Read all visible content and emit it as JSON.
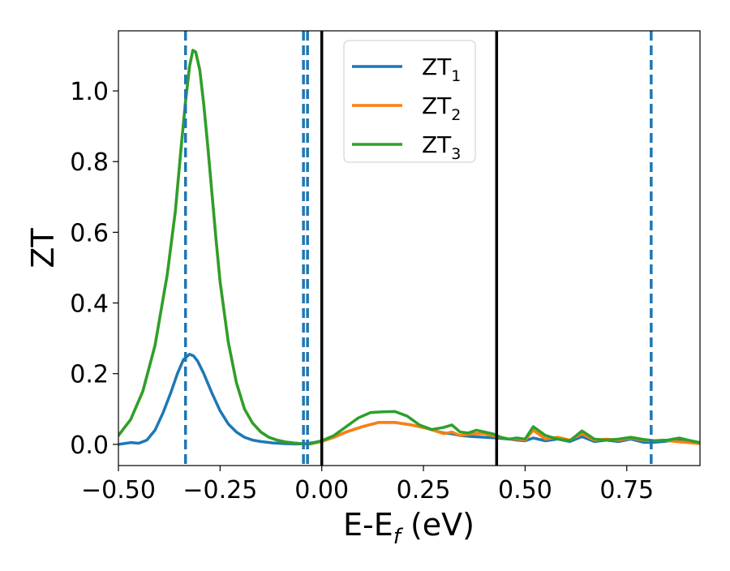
{
  "chart_data": {
    "type": "line",
    "xlabel": "E-E",
    "xlabel_sub": "f",
    "xlabel_unit": " (eV)",
    "ylabel": "ZT",
    "xlim": [
      -0.5,
      0.93
    ],
    "ylim": [
      -0.06,
      1.17
    ],
    "xticks": [
      -0.5,
      -0.25,
      0.0,
      0.25,
      0.5,
      0.75
    ],
    "xtick_labels": [
      "−0.50",
      "−0.25",
      "0.00",
      "0.25",
      "0.50",
      "0.75"
    ],
    "yticks": [
      0.0,
      0.2,
      0.4,
      0.6,
      0.8,
      1.0
    ],
    "ytick_labels": [
      "0.0",
      "0.2",
      "0.4",
      "0.6",
      "0.8",
      "1.0"
    ],
    "grid": false,
    "legend_position": "top-center",
    "vlines_solid": [
      0.0,
      0.43
    ],
    "vlines_dashed": [
      -0.335,
      -0.045,
      -0.035,
      0.81
    ],
    "vline_solid_color": "#000000",
    "vline_dashed_color": "#1f77b4",
    "series": [
      {
        "name": "ZT",
        "name_sub": "1",
        "color": "#1f77b4",
        "x": [
          -0.5,
          -0.47,
          -0.45,
          -0.43,
          -0.41,
          -0.39,
          -0.37,
          -0.355,
          -0.34,
          -0.325,
          -0.315,
          -0.305,
          -0.29,
          -0.27,
          -0.25,
          -0.23,
          -0.21,
          -0.19,
          -0.17,
          -0.15,
          -0.12,
          -0.09,
          -0.06,
          -0.04,
          -0.02,
          0.0,
          0.03,
          0.06,
          0.1,
          0.14,
          0.18,
          0.22,
          0.26,
          0.28,
          0.3,
          0.32,
          0.34,
          0.37,
          0.4,
          0.43,
          0.46,
          0.48,
          0.5,
          0.52,
          0.55,
          0.58,
          0.61,
          0.64,
          0.67,
          0.7,
          0.73,
          0.76,
          0.79,
          0.81,
          0.84,
          0.87,
          0.9,
          0.93
        ],
        "y": [
          0.0,
          0.005,
          0.003,
          0.012,
          0.04,
          0.09,
          0.15,
          0.2,
          0.24,
          0.255,
          0.25,
          0.235,
          0.2,
          0.145,
          0.095,
          0.058,
          0.035,
          0.02,
          0.012,
          0.008,
          0.004,
          0.002,
          0.001,
          0.002,
          0.005,
          0.01,
          0.02,
          0.035,
          0.05,
          0.062,
          0.062,
          0.055,
          0.045,
          0.038,
          0.032,
          0.03,
          0.025,
          0.022,
          0.02,
          0.018,
          0.015,
          0.012,
          0.01,
          0.018,
          0.01,
          0.015,
          0.008,
          0.022,
          0.008,
          0.012,
          0.008,
          0.015,
          0.006,
          0.005,
          0.008,
          0.012,
          0.008,
          0.005
        ]
      },
      {
        "name": "ZT",
        "name_sub": "2",
        "color": "#ff7f0e",
        "x": [
          -0.5,
          -0.47,
          -0.44,
          -0.41,
          -0.38,
          -0.36,
          -0.345,
          -0.335,
          -0.325,
          -0.317,
          -0.31,
          -0.3,
          -0.29,
          -0.28,
          -0.27,
          -0.26,
          -0.25,
          -0.23,
          -0.21,
          -0.19,
          -0.17,
          -0.15,
          -0.13,
          -0.11,
          -0.09,
          -0.07,
          -0.05,
          -0.03,
          0.0,
          0.03,
          0.06,
          0.1,
          0.14,
          0.18,
          0.22,
          0.26,
          0.28,
          0.3,
          0.32,
          0.34,
          0.37,
          0.4,
          0.43,
          0.46,
          0.48,
          0.5,
          0.52,
          0.55,
          0.58,
          0.61,
          0.64,
          0.67,
          0.7,
          0.73,
          0.76,
          0.79,
          0.81,
          0.84,
          0.87,
          0.9,
          0.93
        ],
        "y": [
          0.025,
          0.07,
          0.15,
          0.28,
          0.48,
          0.66,
          0.85,
          0.97,
          1.07,
          1.115,
          1.11,
          1.06,
          0.96,
          0.84,
          0.71,
          0.58,
          0.46,
          0.29,
          0.175,
          0.1,
          0.06,
          0.035,
          0.02,
          0.012,
          0.007,
          0.004,
          0.002,
          0.001,
          0.008,
          0.02,
          0.035,
          0.05,
          0.062,
          0.062,
          0.055,
          0.045,
          0.038,
          0.03,
          0.035,
          0.025,
          0.03,
          0.03,
          0.022,
          0.015,
          0.015,
          0.012,
          0.04,
          0.015,
          0.02,
          0.012,
          0.03,
          0.012,
          0.015,
          0.012,
          0.018,
          0.012,
          0.01,
          0.012,
          0.008,
          0.005,
          0.002
        ]
      },
      {
        "name": "ZT",
        "name_sub": "3",
        "color": "#2ca02c",
        "x": [
          -0.5,
          -0.47,
          -0.44,
          -0.41,
          -0.38,
          -0.36,
          -0.345,
          -0.335,
          -0.325,
          -0.317,
          -0.31,
          -0.3,
          -0.29,
          -0.28,
          -0.27,
          -0.26,
          -0.25,
          -0.23,
          -0.21,
          -0.19,
          -0.17,
          -0.15,
          -0.13,
          -0.11,
          -0.09,
          -0.07,
          -0.05,
          -0.03,
          0.0,
          0.03,
          0.06,
          0.09,
          0.12,
          0.15,
          0.18,
          0.21,
          0.24,
          0.27,
          0.3,
          0.32,
          0.34,
          0.36,
          0.38,
          0.4,
          0.42,
          0.44,
          0.46,
          0.48,
          0.5,
          0.52,
          0.55,
          0.58,
          0.61,
          0.64,
          0.67,
          0.7,
          0.73,
          0.76,
          0.79,
          0.82,
          0.85,
          0.88,
          0.9,
          0.93
        ],
        "y": [
          0.025,
          0.07,
          0.15,
          0.28,
          0.48,
          0.66,
          0.85,
          0.97,
          1.07,
          1.115,
          1.11,
          1.06,
          0.96,
          0.84,
          0.71,
          0.58,
          0.46,
          0.29,
          0.175,
          0.1,
          0.06,
          0.035,
          0.02,
          0.012,
          0.007,
          0.004,
          0.002,
          0.001,
          0.01,
          0.025,
          0.05,
          0.075,
          0.09,
          0.092,
          0.093,
          0.08,
          0.055,
          0.042,
          0.048,
          0.055,
          0.035,
          0.032,
          0.04,
          0.035,
          0.03,
          0.02,
          0.015,
          0.018,
          0.015,
          0.05,
          0.025,
          0.015,
          0.01,
          0.038,
          0.015,
          0.012,
          0.015,
          0.02,
          0.014,
          0.01,
          0.012,
          0.018,
          0.012,
          0.005
        ]
      }
    ]
  }
}
